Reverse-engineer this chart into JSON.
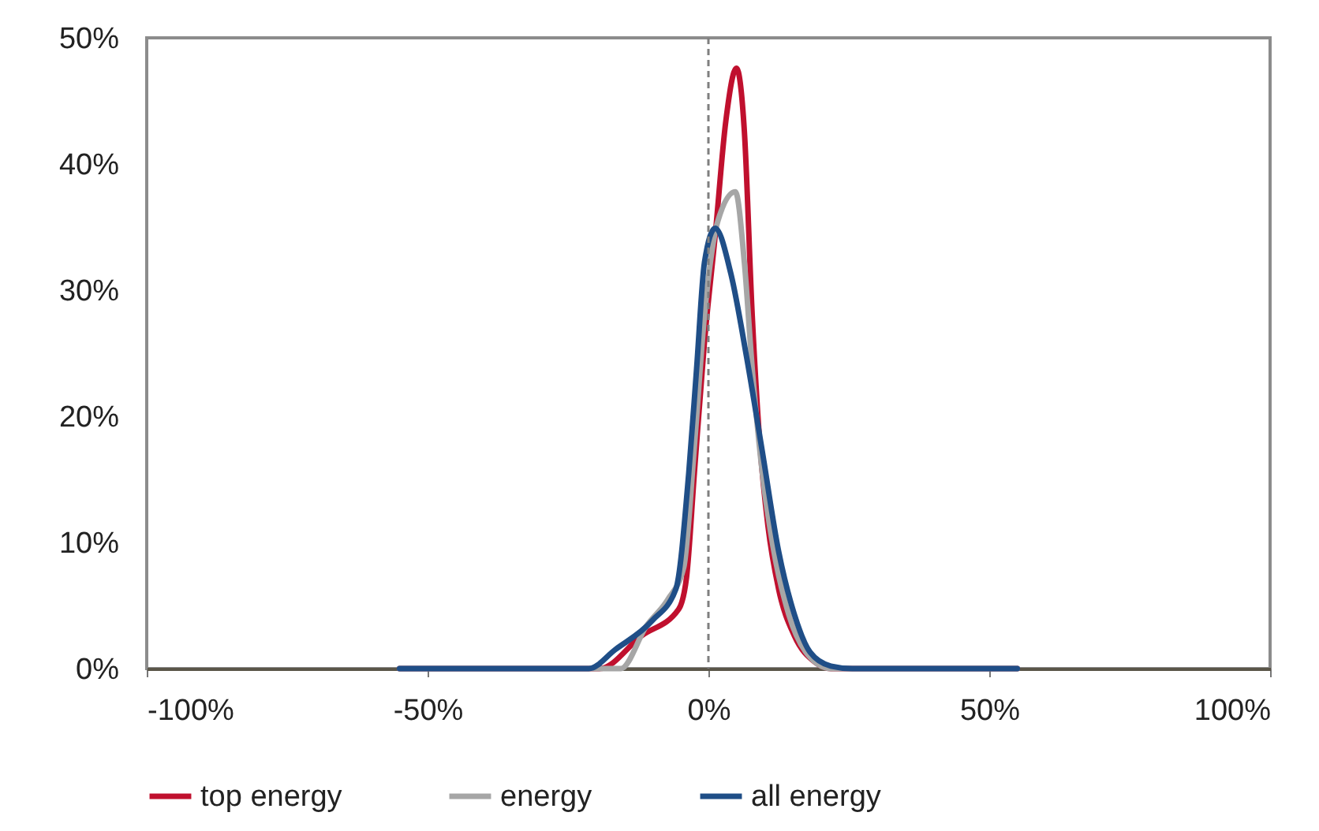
{
  "chart_data": {
    "type": "line",
    "xlim": [
      -100,
      100
    ],
    "ylim": [
      0,
      50
    ],
    "xticks": [
      {
        "value": -100,
        "label": "-100%"
      },
      {
        "value": -50,
        "label": "-50%"
      },
      {
        "value": 0,
        "label": "0%"
      },
      {
        "value": 50,
        "label": "50%"
      },
      {
        "value": 100,
        "label": "100%"
      }
    ],
    "yticks": [
      {
        "value": 0,
        "label": "0%"
      },
      {
        "value": 10,
        "label": "10%"
      },
      {
        "value": 20,
        "label": "20%"
      },
      {
        "value": 30,
        "label": "30%"
      },
      {
        "value": 40,
        "label": "40%"
      },
      {
        "value": 50,
        "label": "50%"
      }
    ],
    "grid": false,
    "legend": "bottom",
    "marker": "none",
    "line_style": "solid",
    "ref_lines": [
      {
        "axis": "x",
        "value": 0,
        "color": "#7f7f7f",
        "line_style": "dashed"
      }
    ],
    "series": [
      {
        "name": "top energy",
        "color": "#c0102e",
        "x": [
          -55,
          -22,
          -19.4,
          -11.9,
          -5.3,
          -3.9,
          -2.5,
          -0.7,
          1.2,
          3.1,
          5.0,
          6.4,
          7.8,
          9.2,
          10.6,
          12.5,
          15.3,
          19,
          21.8,
          55
        ],
        "values": [
          0,
          0,
          0,
          2.6,
          4.7,
          7.2,
          15.5,
          25.9,
          34.3,
          43.4,
          47.6,
          42.6,
          28,
          17.6,
          11.3,
          6.3,
          2.6,
          0.5,
          0,
          0
        ]
      },
      {
        "name": "energy",
        "color": "#a6a6a6",
        "x": [
          -55,
          -20.3,
          -15.6,
          -11,
          -7.2,
          -4.4,
          -2.5,
          -0.7,
          1.7,
          4.8,
          6.4,
          7.8,
          9.6,
          11.5,
          14.3,
          18.1,
          21.8,
          55
        ],
        "values": [
          0,
          0,
          0,
          3.4,
          5.5,
          8,
          17.6,
          28,
          35.5,
          37.8,
          32.2,
          23.8,
          15.5,
          9.7,
          4.3,
          0.9,
          0,
          0
        ]
      },
      {
        "name": "all energy",
        "color": "#1f4e87",
        "x": [
          -55,
          -21.3,
          -16.6,
          -10,
          -5.8,
          -3.5,
          -2.1,
          -0.7,
          1.2,
          4,
          6.8,
          9.6,
          12.5,
          15.3,
          18.1,
          21.8,
          25.6,
          55
        ],
        "values": [
          0,
          0,
          1.5,
          3.8,
          6.3,
          15.5,
          23.8,
          32.2,
          34.9,
          31.3,
          24.7,
          17.2,
          9.3,
          4.3,
          1.3,
          0.2,
          0,
          0
        ]
      }
    ]
  }
}
